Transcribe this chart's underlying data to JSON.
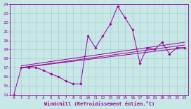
{
  "bg_color": "#c8e8e8",
  "grid_color": "#aacccc",
  "line_color": "#990099",
  "xlabel": "Windchill (Refroidissement éolien,°C)",
  "xlim": [
    -0.5,
    23.5
  ],
  "ylim": [
    14,
    24
  ],
  "yticks": [
    14,
    15,
    16,
    17,
    18,
    19,
    20,
    21,
    22,
    23,
    24
  ],
  "xticks": [
    0,
    1,
    2,
    3,
    4,
    5,
    6,
    7,
    8,
    9,
    10,
    11,
    12,
    13,
    14,
    15,
    16,
    17,
    18,
    19,
    20,
    21,
    22,
    23
  ],
  "series1_x": [
    0,
    1,
    2,
    3,
    4,
    5,
    6,
    7,
    8,
    9,
    10,
    11,
    12,
    13,
    14,
    15,
    16,
    17,
    18,
    19,
    20,
    21,
    22,
    23
  ],
  "series1_y": [
    14.0,
    17.0,
    17.0,
    17.0,
    16.7,
    16.3,
    16.0,
    15.5,
    15.2,
    15.2,
    20.5,
    19.2,
    20.5,
    21.8,
    23.8,
    22.5,
    21.2,
    17.5,
    19.2,
    19.0,
    19.8,
    18.5,
    19.2,
    19.2
  ],
  "trend1_x": [
    1,
    23
  ],
  "trend1_y": [
    17.0,
    19.2
  ],
  "trend2_x": [
    1,
    23
  ],
  "trend2_y": [
    17.0,
    19.5
  ],
  "trend3_x": [
    1,
    23
  ],
  "trend3_y": [
    17.2,
    19.8
  ],
  "marker": "D",
  "marker_size": 1.8,
  "linewidth": 0.7
}
